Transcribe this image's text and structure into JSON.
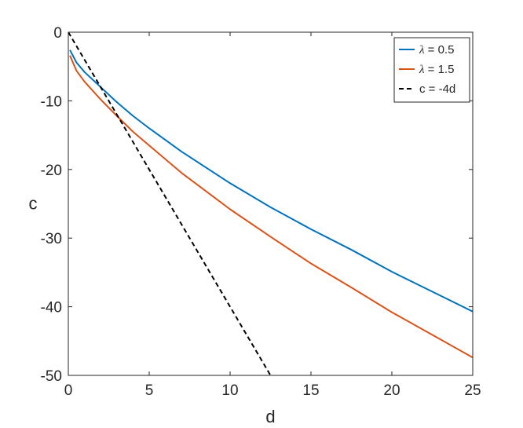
{
  "chart_data": {
    "type": "line",
    "title": "",
    "xlabel": "d",
    "ylabel": "c",
    "xlim": [
      0,
      25
    ],
    "ylim": [
      -50,
      0
    ],
    "xticks": [
      0,
      5,
      10,
      15,
      20,
      25
    ],
    "yticks": [
      0,
      -10,
      -20,
      -30,
      -40,
      -50
    ],
    "grid": false,
    "legend_position": "top-right",
    "series": [
      {
        "name_prefix": "λ",
        "name_suffix": " = 0.5",
        "color": "#0072BD",
        "style": "solid",
        "x": [
          0.1,
          0.5,
          1,
          2,
          3,
          4,
          5,
          7,
          10,
          12.5,
          15,
          17.5,
          20,
          22.5,
          25
        ],
        "y": [
          -2.6,
          -4.4,
          -5.8,
          -8.0,
          -10.2,
          -12.2,
          -14.0,
          -17.4,
          -22.0,
          -25.5,
          -28.7,
          -31.7,
          -34.9,
          -37.8,
          -40.7
        ]
      },
      {
        "name_prefix": "λ",
        "name_suffix": " = 1.5",
        "color": "#D95319",
        "style": "solid",
        "x": [
          0.1,
          0.5,
          1,
          2,
          3,
          4,
          5,
          7,
          10,
          12.5,
          15,
          17.5,
          20,
          22.5,
          25
        ],
        "y": [
          -3.4,
          -5.6,
          -7.2,
          -9.8,
          -12.2,
          -14.5,
          -16.5,
          -20.5,
          -25.8,
          -29.8,
          -33.7,
          -37.2,
          -40.8,
          -44.1,
          -47.4
        ]
      },
      {
        "name": "c = -4d",
        "color": "#000000",
        "style": "dashed",
        "x": [
          0,
          12.5
        ],
        "y": [
          0,
          -50
        ]
      }
    ]
  }
}
